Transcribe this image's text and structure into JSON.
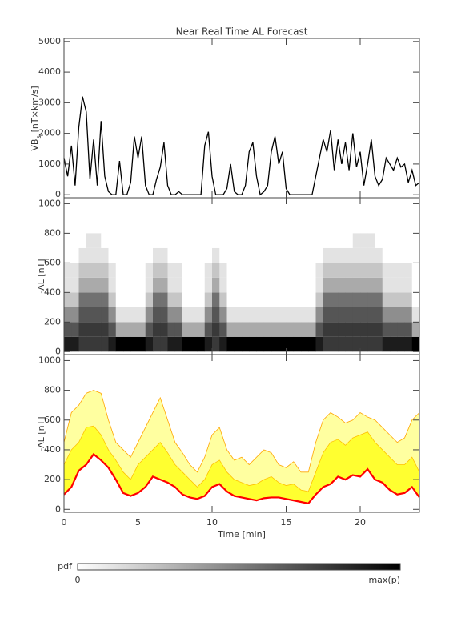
{
  "chart_data": [
    {
      "type": "line",
      "title": "Near Real Time AL Forecast",
      "ylabel": {
        "main": "VB",
        "sub": "s",
        "rest": "[nT×km/s]"
      },
      "xlim": [
        0,
        24
      ],
      "xticks": [
        0,
        5,
        10,
        15,
        20
      ],
      "ylim": [
        -100,
        5100
      ],
      "yticks": [
        0,
        1000,
        2000,
        3000,
        4000,
        5000
      ],
      "color": "#000000",
      "x": [
        0,
        0.25,
        0.5,
        0.75,
        1,
        1.25,
        1.5,
        1.75,
        2,
        2.25,
        2.5,
        2.75,
        3,
        3.25,
        3.5,
        3.75,
        4,
        4.25,
        4.5,
        4.75,
        5,
        5.25,
        5.5,
        5.75,
        6,
        6.25,
        6.5,
        6.75,
        7,
        7.25,
        7.5,
        7.75,
        8,
        8.25,
        8.5,
        8.75,
        9,
        9.25,
        9.5,
        9.75,
        10,
        10.25,
        10.5,
        10.75,
        11,
        11.25,
        11.5,
        11.75,
        12,
        12.25,
        12.5,
        12.75,
        13,
        13.25,
        13.5,
        13.75,
        14,
        14.25,
        14.5,
        14.75,
        15,
        15.25,
        15.5,
        15.75,
        16,
        16.25,
        16.5,
        16.75,
        17,
        17.25,
        17.5,
        17.75,
        18,
        18.25,
        18.5,
        18.75,
        19,
        19.25,
        19.5,
        19.75,
        20,
        20.25,
        20.5,
        20.75,
        21,
        21.25,
        21.5,
        21.75,
        22,
        22.25,
        22.5,
        22.75,
        23,
        23.25,
        23.5,
        23.75,
        24
      ],
      "values": [
        1200,
        600,
        1600,
        300,
        2200,
        3200,
        2700,
        500,
        1800,
        300,
        2400,
        600,
        100,
        0,
        0,
        1100,
        0,
        0,
        400,
        1900,
        1200,
        1900,
        300,
        0,
        0,
        500,
        900,
        1700,
        300,
        0,
        0,
        100,
        0,
        0,
        0,
        0,
        0,
        0,
        1600,
        2050,
        600,
        0,
        0,
        0,
        200,
        1000,
        100,
        0,
        0,
        300,
        1400,
        1700,
        600,
        0,
        100,
        300,
        1400,
        1900,
        1000,
        1400,
        200,
        0,
        0,
        0,
        0,
        0,
        0,
        0,
        600,
        1200,
        1800,
        1400,
        2100,
        800,
        1800,
        1000,
        1700,
        800,
        2000,
        900,
        1400,
        300,
        1000,
        1800,
        600,
        300,
        500,
        1200,
        1000,
        800,
        1200,
        900,
        1000,
        400,
        800,
        300,
        400
      ]
    },
    {
      "type": "heatmap",
      "ylabel": "-AL [nT]",
      "xlim": [
        0,
        24
      ],
      "xticks": [
        0,
        5,
        10,
        15,
        20
      ],
      "ylim": [
        -20,
        1040
      ],
      "yticks": [
        0,
        200,
        400,
        600,
        800,
        1000
      ],
      "zlim": [
        0,
        9
      ],
      "xbins": [
        0,
        0.5,
        1,
        1.5,
        2,
        2.5,
        3,
        3.5,
        4,
        4.5,
        5,
        5.5,
        6,
        6.5,
        7,
        7.5,
        8,
        8.5,
        9,
        9.5,
        10,
        10.5,
        11,
        11.5,
        12,
        12.5,
        13,
        13.5,
        14,
        14.5,
        15,
        15.5,
        16,
        16.5,
        17,
        17.5,
        18,
        18.5,
        19,
        19.5,
        20,
        20.5,
        21,
        21.5,
        22,
        22.5,
        23,
        23.5,
        24
      ],
      "ybins": [
        0,
        100,
        200,
        300,
        400,
        500,
        600,
        700,
        800
      ],
      "z": [
        [
          8,
          8,
          7,
          7,
          7,
          7,
          8,
          9,
          9,
          9,
          9,
          8,
          7,
          7,
          8,
          8,
          9,
          9,
          9,
          8,
          7,
          8,
          9,
          9,
          9,
          9,
          9,
          9,
          9,
          9,
          9,
          9,
          9,
          9,
          8,
          7,
          7,
          7,
          7,
          7,
          7,
          7,
          7,
          8,
          8,
          8,
          8,
          9
        ],
        [
          6,
          6,
          7,
          7,
          7,
          7,
          6,
          3,
          3,
          3,
          3,
          6,
          7,
          7,
          6,
          6,
          3,
          3,
          3,
          6,
          7,
          6,
          3,
          3,
          3,
          3,
          3,
          3,
          3,
          3,
          3,
          3,
          3,
          3,
          6,
          7,
          7,
          7,
          7,
          7,
          7,
          7,
          7,
          6,
          6,
          6,
          6,
          3
        ],
        [
          4,
          4,
          6,
          6,
          6,
          6,
          4,
          1,
          1,
          1,
          1,
          4,
          6,
          6,
          4,
          4,
          1,
          1,
          1,
          4,
          6,
          4,
          1,
          1,
          1,
          1,
          1,
          1,
          1,
          1,
          1,
          1,
          1,
          1,
          4,
          6,
          6,
          6,
          6,
          6,
          6,
          6,
          6,
          4,
          4,
          4,
          4,
          1
        ],
        [
          2,
          2,
          5,
          5,
          5,
          5,
          2,
          0,
          0,
          0,
          0,
          2,
          5,
          5,
          2,
          2,
          0,
          0,
          0,
          2,
          5,
          2,
          0,
          0,
          0,
          0,
          0,
          0,
          0,
          0,
          0,
          0,
          0,
          0,
          2,
          5,
          5,
          5,
          5,
          5,
          5,
          5,
          5,
          2,
          2,
          2,
          2,
          0
        ],
        [
          1,
          1,
          3,
          3,
          3,
          3,
          1,
          0,
          0,
          0,
          0,
          1,
          3,
          3,
          1,
          1,
          0,
          0,
          0,
          1,
          3,
          1,
          0,
          0,
          0,
          0,
          0,
          0,
          0,
          0,
          0,
          0,
          0,
          0,
          1,
          3,
          3,
          3,
          3,
          3,
          3,
          3,
          3,
          1,
          1,
          1,
          1,
          0
        ],
        [
          1,
          1,
          2,
          2,
          2,
          2,
          1,
          0,
          0,
          0,
          0,
          1,
          2,
          2,
          1,
          1,
          0,
          0,
          0,
          1,
          2,
          1,
          0,
          0,
          0,
          0,
          0,
          0,
          0,
          0,
          0,
          0,
          0,
          0,
          1,
          2,
          2,
          2,
          2,
          2,
          2,
          2,
          2,
          1,
          1,
          1,
          1,
          0
        ],
        [
          0,
          0,
          1,
          1,
          1,
          1,
          0,
          0,
          0,
          0,
          0,
          0,
          1,
          1,
          0,
          0,
          0,
          0,
          0,
          0,
          1,
          0,
          0,
          0,
          0,
          0,
          0,
          0,
          0,
          0,
          0,
          0,
          0,
          0,
          0,
          1,
          1,
          1,
          1,
          1,
          1,
          1,
          1,
          0,
          0,
          0,
          0,
          0
        ],
        [
          0,
          0,
          0,
          1,
          1,
          0,
          0,
          0,
          0,
          0,
          0,
          0,
          0,
          0,
          0,
          0,
          0,
          0,
          0,
          0,
          0,
          0,
          0,
          0,
          0,
          0,
          0,
          0,
          0,
          0,
          0,
          0,
          0,
          0,
          0,
          0,
          0,
          0,
          0,
          1,
          1,
          1,
          0,
          0,
          0,
          0,
          0,
          0
        ]
      ]
    },
    {
      "type": "area",
      "ylabel": "-AL [nT]",
      "xlabel": "Time [min]",
      "xlim": [
        0,
        24
      ],
      "xticks": [
        0,
        5,
        10,
        15,
        20
      ],
      "ylim": [
        -20,
        1040
      ],
      "yticks": [
        0,
        200,
        400,
        600,
        800,
        1000
      ],
      "x": [
        0,
        0.5,
        1,
        1.5,
        2,
        2.5,
        3,
        3.5,
        4,
        4.5,
        5,
        5.5,
        6,
        6.5,
        7,
        7.5,
        8,
        8.5,
        9,
        9.5,
        10,
        10.5,
        11,
        11.5,
        12,
        12.5,
        13,
        13.5,
        14,
        14.5,
        15,
        15.5,
        16,
        16.5,
        17,
        17.5,
        18,
        18.5,
        19,
        19.5,
        20,
        20.5,
        21,
        21.5,
        22,
        22.5,
        23,
        23.5,
        24
      ],
      "series": [
        {
          "fill": "#ffffa0",
          "color": "#ffa500",
          "values": [
            450,
            650,
            700,
            780,
            800,
            780,
            600,
            450,
            400,
            350,
            450,
            550,
            650,
            750,
            600,
            450,
            380,
            300,
            250,
            350,
            500,
            550,
            400,
            330,
            350,
            300,
            350,
            400,
            380,
            300,
            280,
            320,
            250,
            250,
            450,
            600,
            650,
            620,
            580,
            600,
            650,
            620,
            600,
            550,
            500,
            450,
            480,
            600,
            650
          ]
        },
        {
          "fill": "#ffff30",
          "color": "#ffc000",
          "values": [
            300,
            400,
            450,
            550,
            560,
            500,
            400,
            330,
            250,
            200,
            300,
            350,
            400,
            450,
            380,
            300,
            250,
            200,
            150,
            200,
            300,
            330,
            250,
            200,
            180,
            160,
            170,
            200,
            220,
            180,
            160,
            170,
            130,
            120,
            250,
            380,
            450,
            470,
            430,
            480,
            500,
            520,
            450,
            400,
            350,
            300,
            300,
            350,
            250
          ]
        },
        {
          "color": "#ff0000",
          "values": [
            100,
            150,
            260,
            300,
            370,
            330,
            280,
            200,
            110,
            90,
            110,
            150,
            220,
            200,
            180,
            150,
            100,
            80,
            70,
            90,
            150,
            170,
            120,
            90,
            80,
            70,
            60,
            75,
            80,
            80,
            70,
            60,
            50,
            40,
            100,
            150,
            170,
            220,
            200,
            230,
            220,
            270,
            200,
            180,
            130,
            100,
            110,
            150,
            80
          ]
        }
      ]
    }
  ],
  "colorbar": {
    "label": "pdf",
    "min": 0,
    "max_label": "max(p)"
  }
}
